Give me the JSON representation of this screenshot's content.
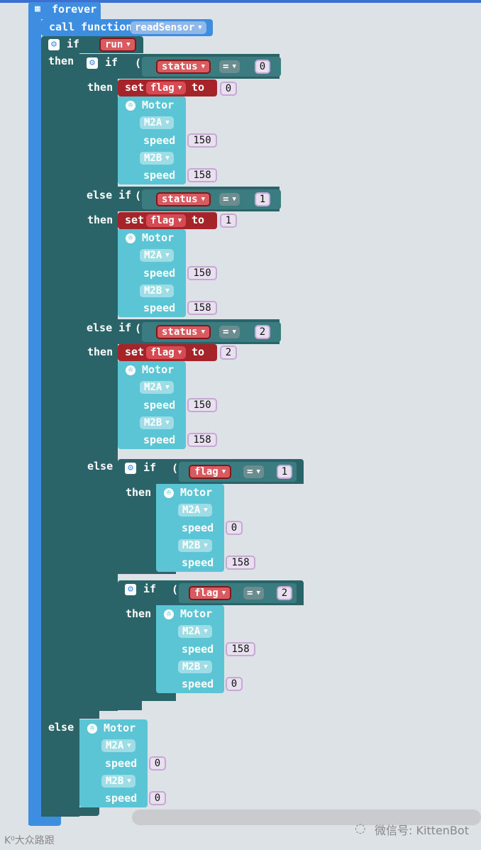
{
  "forever_label": "forever",
  "call_label": "call function",
  "function_name": "readSensor",
  "kw": {
    "if": "if",
    "then": "then",
    "else": "else",
    "else_if": "else if",
    "set": "set",
    "to": "to",
    "motor": "Motor",
    "speed": "speed",
    "eq": "="
  },
  "vars": {
    "run": "run",
    "status": "status",
    "flag": "flag"
  },
  "motor_ports": {
    "a": "M2A",
    "b": "M2B"
  },
  "branches": {
    "b0": {
      "cmp": "0",
      "flag": "0",
      "m2a": "150",
      "m2b": "158"
    },
    "b1": {
      "cmp": "1",
      "flag": "1",
      "m2a": "150",
      "m2b": "158"
    },
    "b2": {
      "cmp": "2",
      "flag": "2",
      "m2a": "150",
      "m2b": "158"
    },
    "inner1": {
      "cmp": "1",
      "m2a": "0",
      "m2b": "158"
    },
    "inner2": {
      "cmp": "2",
      "m2a": "158",
      "m2b": "0"
    },
    "outer_else": {
      "m2a": "0",
      "m2b": "0"
    }
  },
  "watermark_left": "K⁰大众路跟",
  "watermark_right": "微信号: KittenBot",
  "colors": {
    "loop": "#3d8de0",
    "logic": "#2b6468",
    "motor": "#5bc5d5",
    "var": "#a4242a",
    "number": "#e8e0ef"
  }
}
